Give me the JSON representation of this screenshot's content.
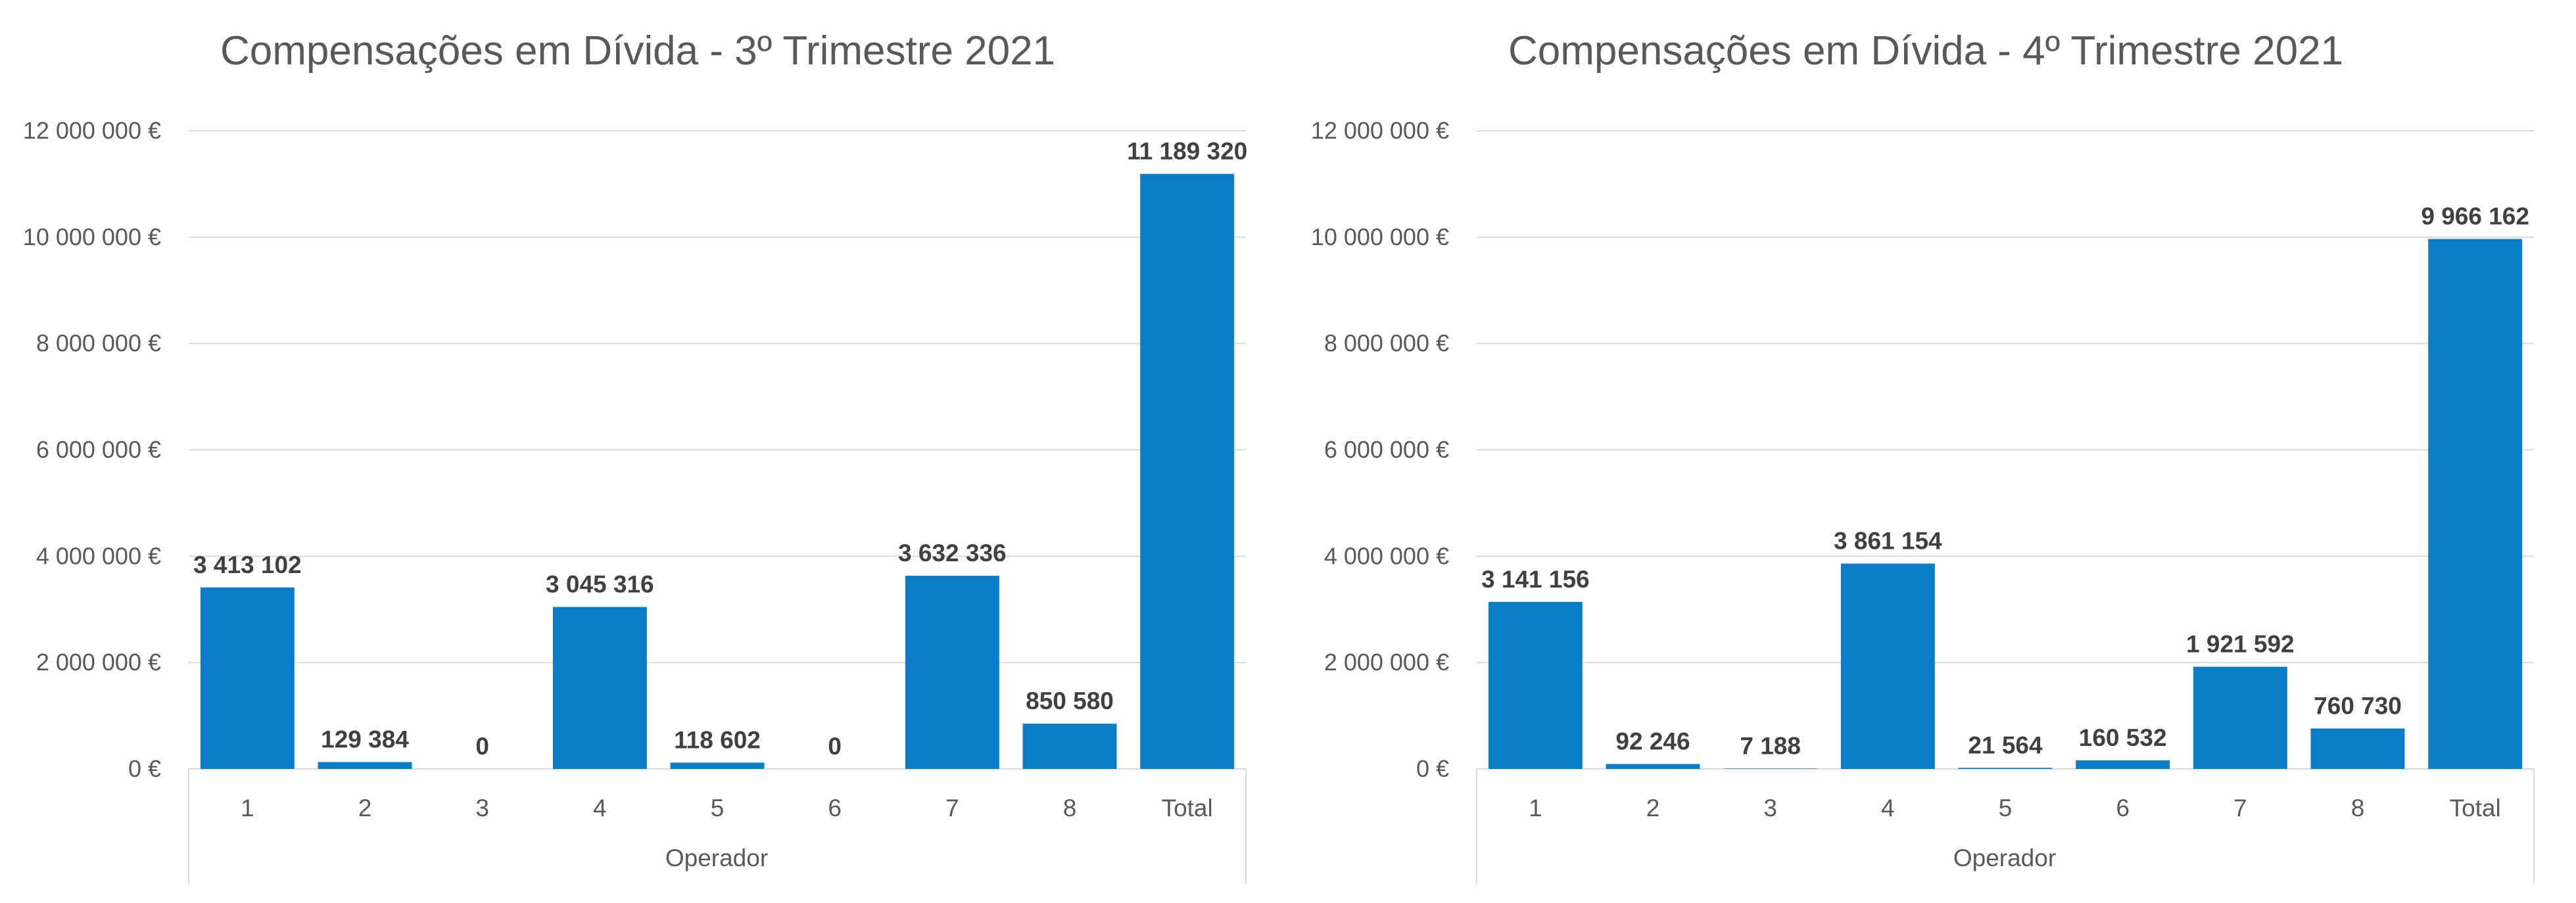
{
  "chart_data": [
    {
      "type": "bar",
      "title": "Compensações em Dívida - 3º Trimestre 2021",
      "xlabel": "Operador",
      "ylabel": "",
      "categories": [
        "1",
        "2",
        "3",
        "4",
        "5",
        "6",
        "7",
        "8",
        "Total"
      ],
      "values": [
        3413102,
        129384,
        0,
        3045316,
        118602,
        0,
        3632336,
        850580,
        11189320
      ],
      "data_labels": [
        "3 413 102",
        "129 384",
        "0",
        "3 045 316",
        "118 602",
        "0",
        "3 632 336",
        "850 580",
        "11 189 320"
      ],
      "ylim": [
        0,
        12000000
      ],
      "y_ticks": [
        "0 €",
        "2 000 000 €",
        "4 000 000 €",
        "6 000 000 €",
        "8 000 000 €",
        "10 000 000 €",
        "12 000 000 €"
      ],
      "grid": true,
      "bar_color": "#0A7DC6"
    },
    {
      "type": "bar",
      "title": "Compensações em Dívida - 4º Trimestre 2021",
      "xlabel": "Operador",
      "ylabel": "",
      "categories": [
        "1",
        "2",
        "3",
        "4",
        "5",
        "6",
        "7",
        "8",
        "Total"
      ],
      "values": [
        3141156,
        92246,
        7188,
        3861154,
        21564,
        160532,
        1921592,
        760730,
        9966162
      ],
      "data_labels": [
        "3 141 156",
        "92 246",
        "7 188",
        "3 861 154",
        "21 564",
        "160 532",
        "1 921 592",
        "760 730",
        "9 966 162"
      ],
      "ylim": [
        0,
        12000000
      ],
      "y_ticks": [
        "0 €",
        "2 000 000 €",
        "4 000 000 €",
        "6 000 000 €",
        "8 000 000 €",
        "10 000 000 €",
        "12 000 000 €"
      ],
      "grid": true,
      "bar_color": "#0A7DC6"
    }
  ]
}
